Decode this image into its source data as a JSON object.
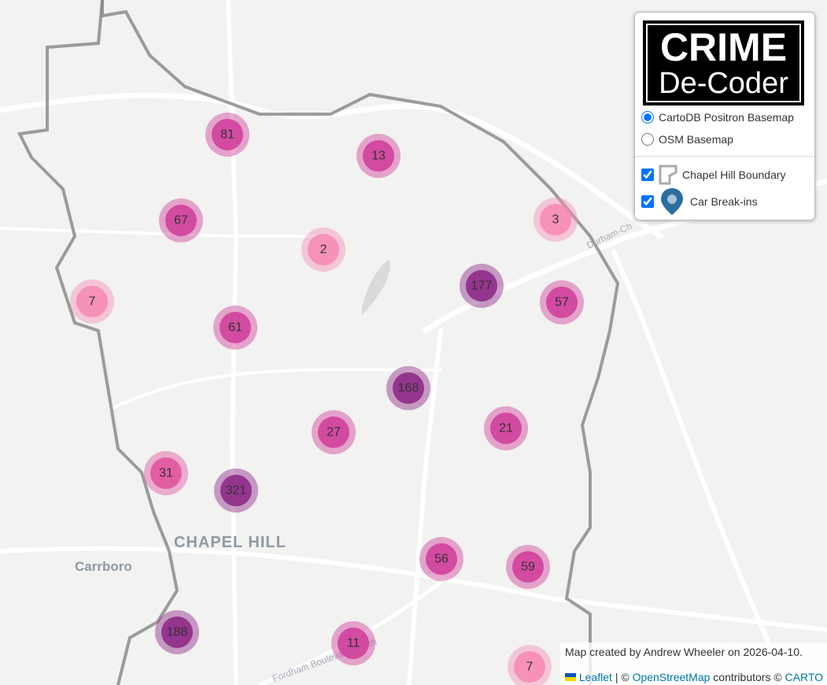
{
  "map_labels": {
    "town": "CHAPEL HILL",
    "neighbor": "Carrboro",
    "road_1": "Durham-Ch",
    "road_2": "Fordham Boulevard South"
  },
  "layer_control": {
    "logo": {
      "line_1": "CRIME",
      "line_2": "De-Coder"
    },
    "basemaps": [
      {
        "label": "CartoDB Positron Basemap",
        "checked": true
      },
      {
        "label": "OSM Basemap",
        "checked": false
      }
    ],
    "overlays": [
      {
        "label": "Chapel Hill Boundary",
        "checked": true
      },
      {
        "label": "Car Break-ins",
        "checked": true
      }
    ]
  },
  "clusters": [
    {
      "count": 81,
      "color": "#d0409c"
    },
    {
      "count": 13,
      "color": "#d0409c"
    },
    {
      "count": 67,
      "color": "#d0409c"
    },
    {
      "count": 2,
      "color": "#f68cb7"
    },
    {
      "count": 3,
      "color": "#f68cb7"
    },
    {
      "count": 7,
      "color": "#f68cb7"
    },
    {
      "count": 177,
      "color": "#8e2a88"
    },
    {
      "count": 57,
      "color": "#d0409c"
    },
    {
      "count": 61,
      "color": "#d0409c"
    },
    {
      "count": 168,
      "color": "#8e2a88"
    },
    {
      "count": 27,
      "color": "#d0409c"
    },
    {
      "count": 21,
      "color": "#d0409c"
    },
    {
      "count": 31,
      "color": "#e0559f"
    },
    {
      "count": 321,
      "color": "#8e2a88"
    },
    {
      "count": 56,
      "color": "#d0409c"
    },
    {
      "count": 59,
      "color": "#d0409c"
    },
    {
      "count": 188,
      "color": "#8e2a88"
    },
    {
      "count": 11,
      "color": "#d0409c"
    },
    {
      "count": 7,
      "color": "#f68cb7"
    }
  ],
  "attribution": {
    "note": "Map created by Andrew Wheeler on 2026-04-10.",
    "leaflet": "Leaflet",
    "sep": "| ©",
    "osm": "OpenStreetMap",
    "contributors": "contributors ©",
    "carto": "CARTO"
  }
}
